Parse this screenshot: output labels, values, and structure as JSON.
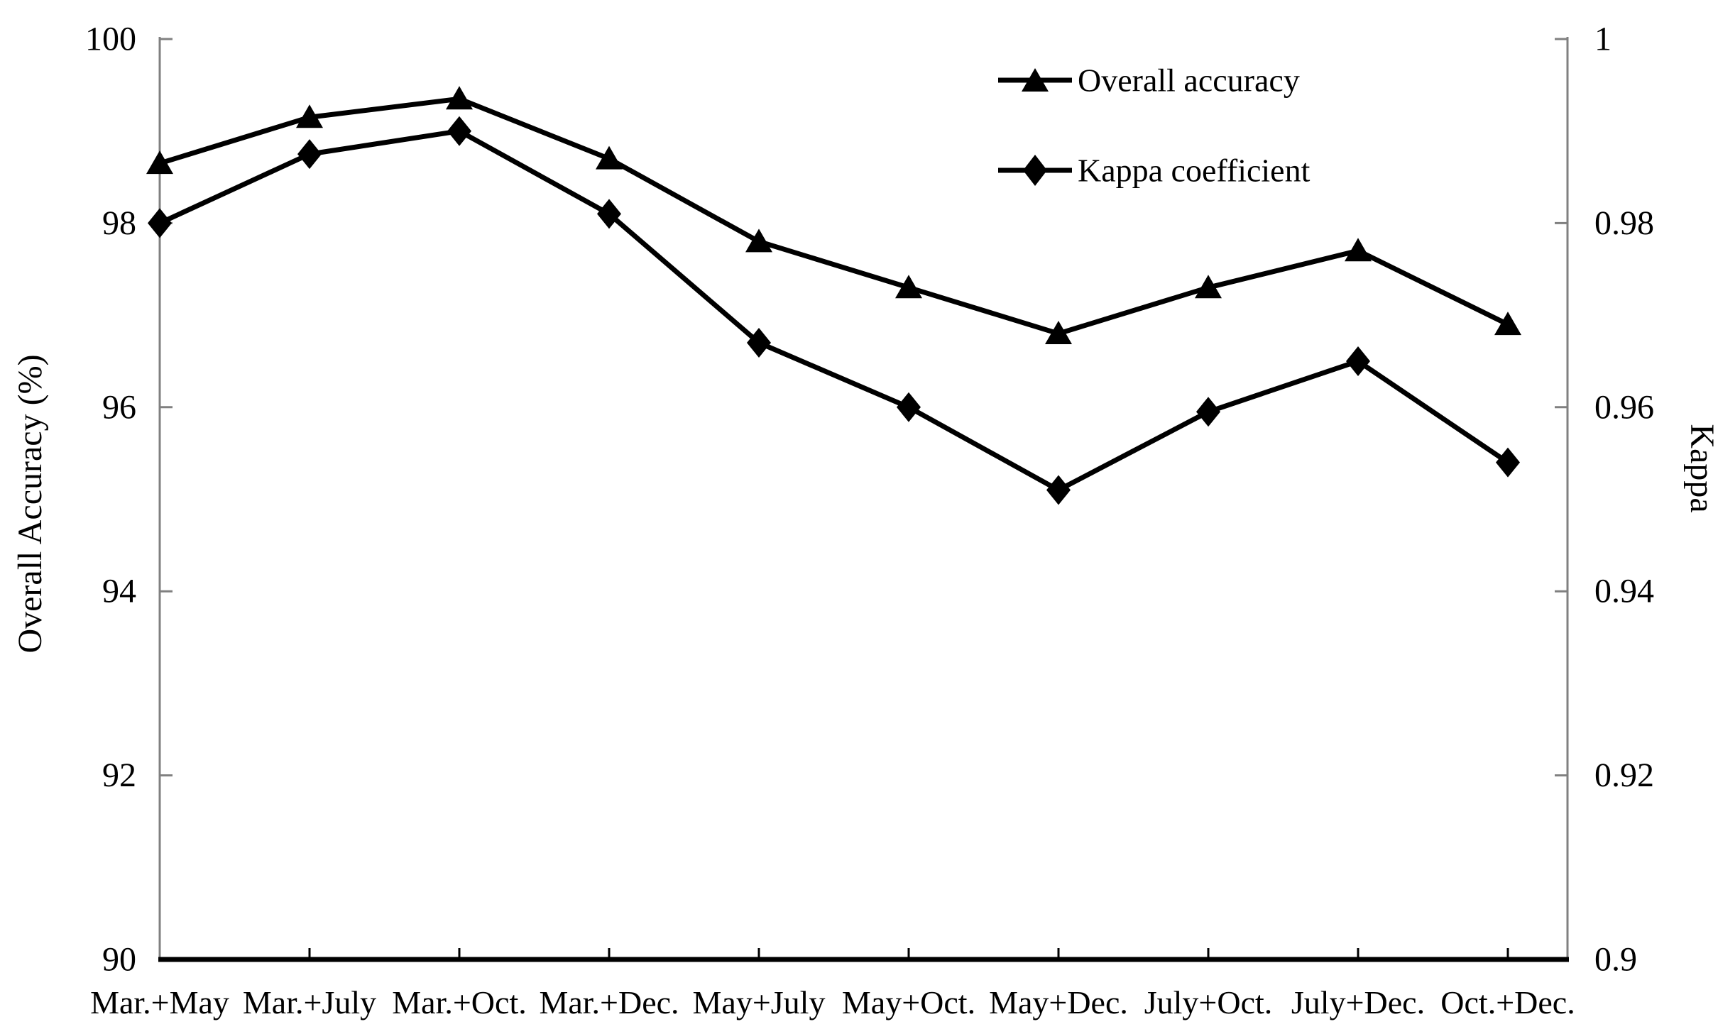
{
  "chart_data": {
    "type": "line",
    "title": "",
    "categories": [
      "Mar.+May",
      "Mar.+July",
      "Mar.+Oct.",
      "Mar.+Dec.",
      "May+July",
      "May+Oct.",
      "May+Dec.",
      "July+Oct.",
      "July+Dec.",
      "Oct.+Dec."
    ],
    "series": [
      {
        "name": "Overall accuracy",
        "axis": "left",
        "marker": "triangle",
        "color": "#000000",
        "values": [
          98.65,
          99.15,
          99.35,
          98.7,
          97.8,
          97.3,
          96.8,
          97.3,
          97.7,
          96.9
        ]
      },
      {
        "name": "Kappa coefficient",
        "axis": "right",
        "marker": "diamond",
        "color": "#000000",
        "values": [
          0.98,
          0.9875,
          0.99,
          0.981,
          0.967,
          0.96,
          0.951,
          0.9595,
          0.965,
          0.954
        ]
      }
    ],
    "left_axis": {
      "label": "Overall Accuracy (%)",
      "min": 90,
      "max": 100,
      "ticks": [
        100,
        98,
        96,
        94,
        92,
        90
      ],
      "tick_labels": [
        "100",
        "98",
        "96",
        "94",
        "92",
        "90"
      ]
    },
    "right_axis": {
      "label": "Kappa",
      "min": 0.9,
      "max": 1.0,
      "ticks": [
        1,
        0.98,
        0.96,
        0.94,
        0.92,
        0.9
      ],
      "tick_labels": [
        "1",
        "0.98",
        "0.96",
        "0.94",
        "0.92",
        "0.9"
      ]
    },
    "legend": {
      "position": "top-right",
      "entries": [
        "Overall accuracy",
        "Kappa coefficient"
      ]
    },
    "grid": false,
    "colors": {
      "series": "#000000",
      "side_axis_line": "#808080",
      "bottom_axis_line": "#000000",
      "background": "#ffffff",
      "text": "#000000"
    }
  }
}
